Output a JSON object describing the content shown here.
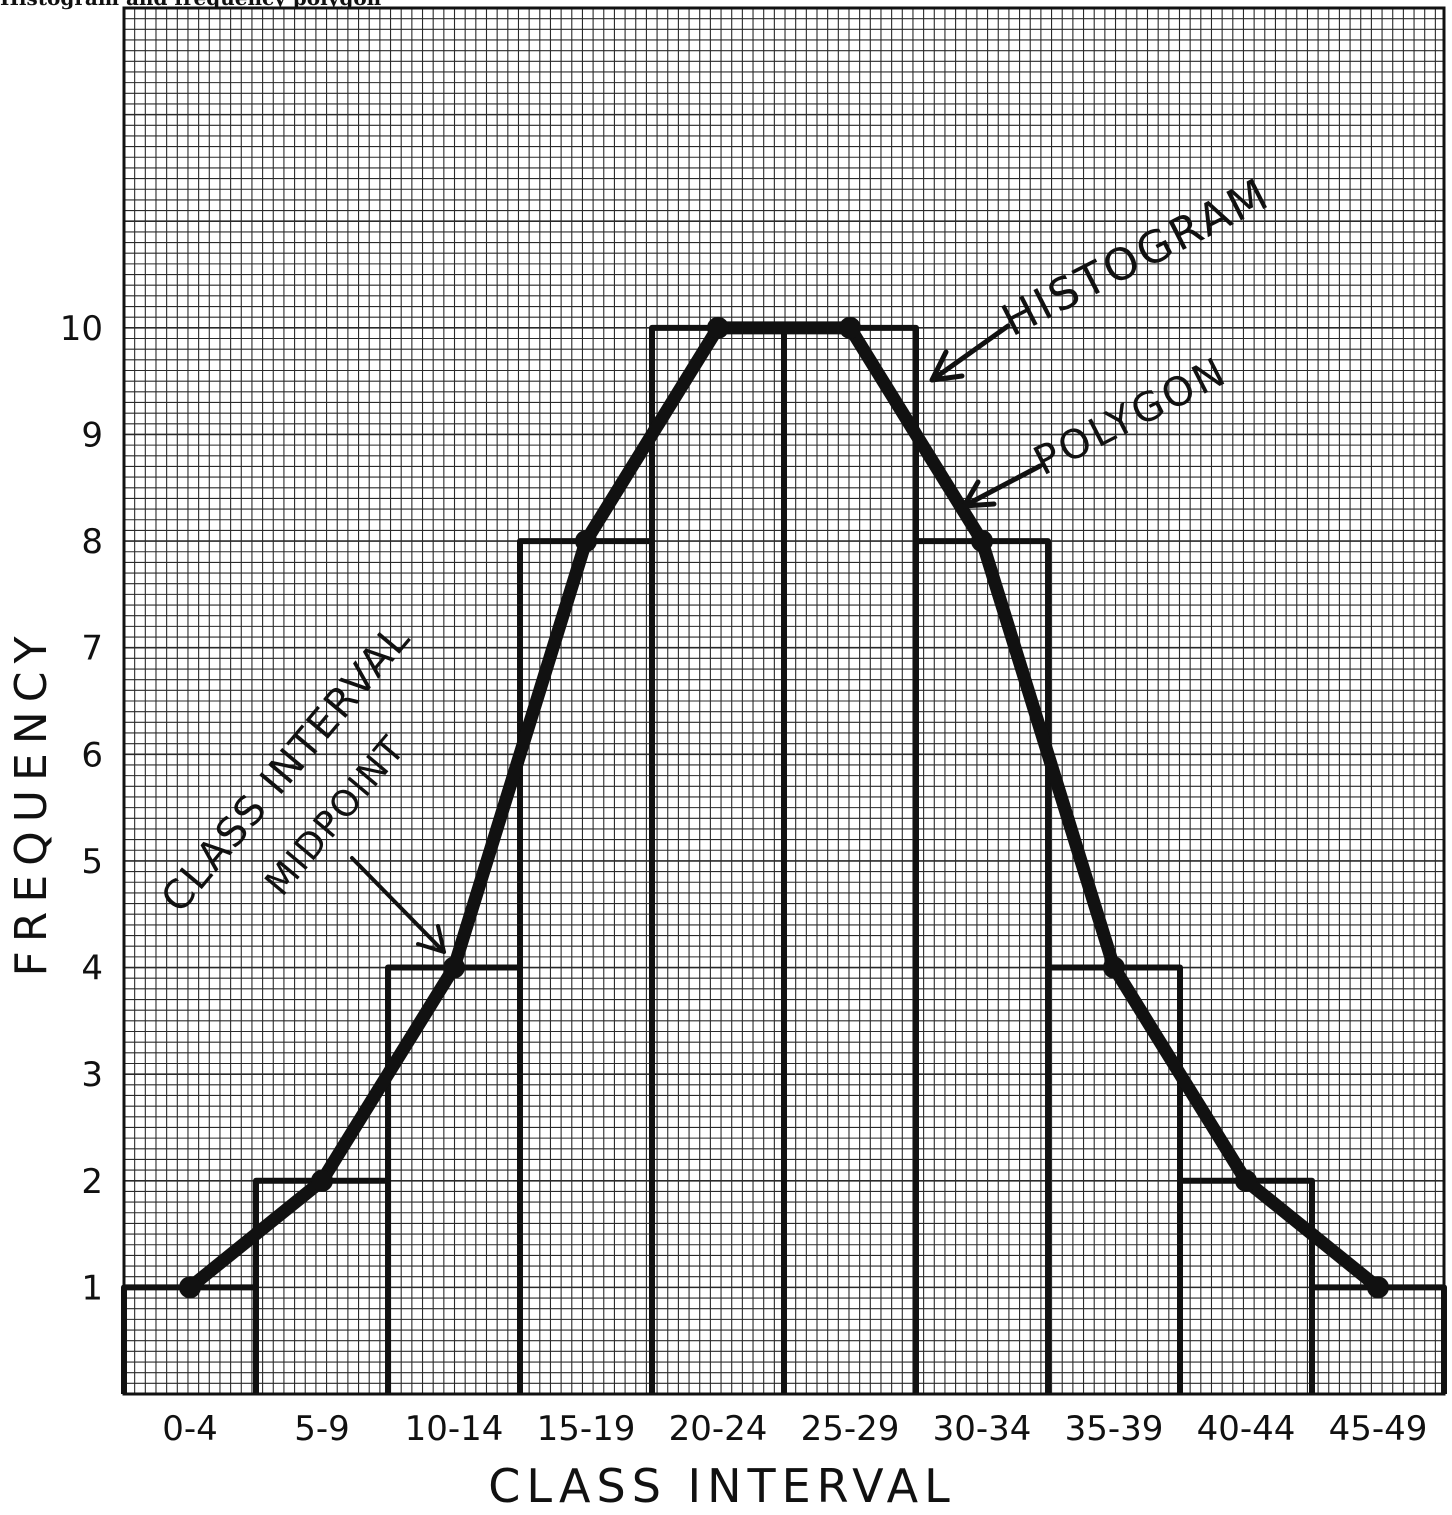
{
  "caption": "Histogram and frequency polygon",
  "chart_data": {
    "type": "bar",
    "title": "",
    "xlabel": "CLASS INTERVAL",
    "ylabel": "FREQUENCY",
    "categories": [
      "0-4",
      "5-9",
      "10-14",
      "15-19",
      "20-24",
      "25-29",
      "30-34",
      "35-39",
      "40-44",
      "45-49"
    ],
    "series": [
      {
        "name": "HISTOGRAM",
        "kind": "bar",
        "values": [
          1,
          2,
          4,
          8,
          10,
          10,
          8,
          4,
          2,
          1
        ]
      },
      {
        "name": "POLYGON",
        "kind": "line",
        "values": [
          1,
          2,
          4,
          8,
          10,
          10,
          8,
          4,
          2,
          1
        ]
      }
    ],
    "yticks": [
      1,
      2,
      3,
      4,
      5,
      6,
      7,
      8,
      9,
      10
    ],
    "ylim": [
      0,
      13
    ],
    "grid": true,
    "annotations": [
      {
        "text": "HISTOGRAM",
        "points_to": "histogram bar top (25-29)"
      },
      {
        "text": "POLYGON",
        "points_to": "polygon line"
      },
      {
        "text": "CLASS INTERVAL",
        "text2": "MIDPOINT",
        "points_to": "midpoint of 10-14"
      }
    ],
    "colors": {
      "ink": "#111111",
      "grid": "#2a2a2a",
      "paper": "#ffffff"
    }
  }
}
